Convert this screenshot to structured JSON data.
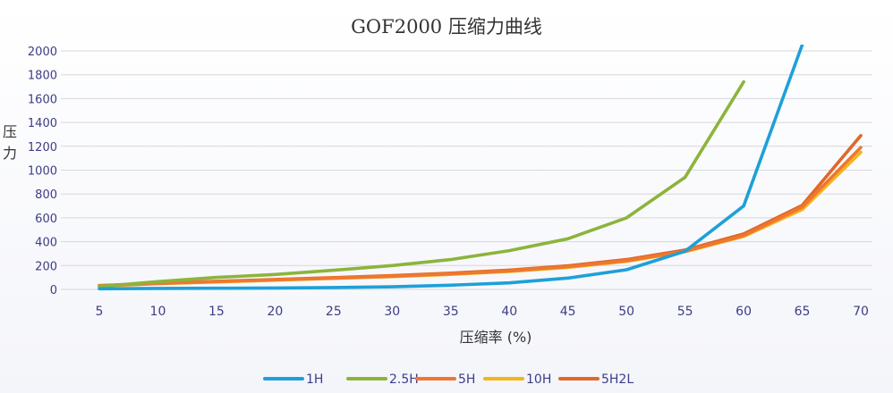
{
  "chart_data": {
    "type": "line",
    "title": "GOF2000 压缩力曲线",
    "xlabel": "压缩率 (%)",
    "ylabel": "压力",
    "x": [
      5,
      10,
      15,
      20,
      25,
      30,
      35,
      40,
      45,
      50,
      55,
      60,
      65,
      70
    ],
    "ylim": [
      0,
      2000
    ],
    "yticks": [
      0,
      200,
      400,
      600,
      800,
      1000,
      1200,
      1400,
      1600,
      1800,
      2000
    ],
    "grid": true,
    "legend_position": "bottom",
    "series": [
      {
        "name": "1H",
        "color": "#1ea0d8",
        "values": [
          5,
          8,
          10,
          12,
          16,
          22,
          35,
          55,
          95,
          165,
          320,
          700,
          2050,
          null
        ]
      },
      {
        "name": "2.5H",
        "color": "#8cb43c",
        "values": [
          25,
          65,
          100,
          125,
          160,
          200,
          250,
          325,
          425,
          600,
          940,
          1740,
          null,
          null
        ]
      },
      {
        "name": "5H",
        "color": "#ee7830",
        "values": [
          30,
          50,
          65,
          80,
          95,
          110,
          130,
          155,
          190,
          240,
          320,
          450,
          690,
          1190
        ]
      },
      {
        "name": "10H",
        "color": "#f5b418",
        "values": [
          28,
          48,
          62,
          77,
          92,
          107,
          126,
          150,
          185,
          235,
          315,
          445,
          670,
          1150
        ]
      },
      {
        "name": "5H2L",
        "color": "#e0682a",
        "values": [
          32,
          52,
          68,
          83,
          99,
          115,
          136,
          162,
          198,
          250,
          330,
          465,
          705,
          1290
        ]
      }
    ]
  }
}
